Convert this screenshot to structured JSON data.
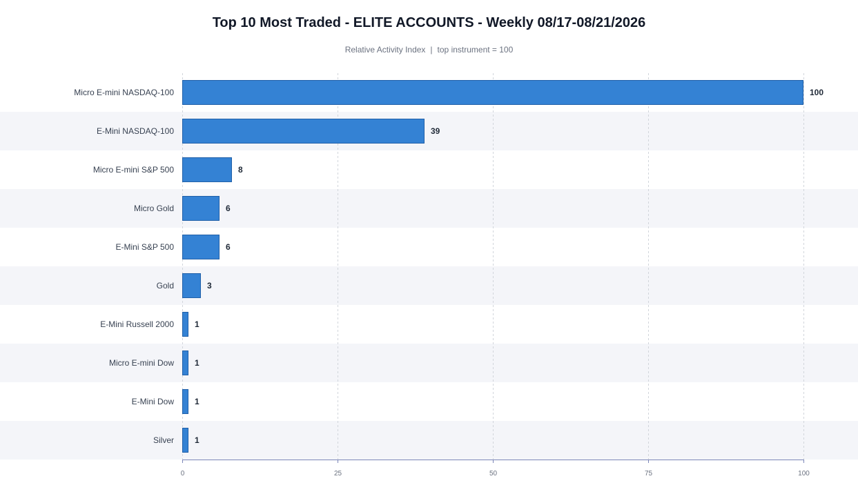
{
  "colors": {
    "bar": "#3482d4",
    "bar_stroke": "#1f5fa8",
    "band": "#f4f5f9",
    "grid": "#d1d5db",
    "axis": "#7b86b8"
  },
  "chart_data": {
    "type": "bar",
    "orientation": "horizontal",
    "title": "Top 10 Most Traded - ELITE ACCOUNTS - Weekly 08/17-08/21/2026",
    "subtitle": {
      "left": "Relative Activity Index",
      "separator": "|",
      "right": "top instrument = 100"
    },
    "categories": [
      "Micro E-mini NASDAQ-100",
      "E-Mini NASDAQ-100",
      "Micro E-mini S&P 500",
      "Micro Gold",
      "E-Mini S&P 500",
      "Gold",
      "E-Mini Russell 2000",
      "Micro E-mini Dow",
      "E-Mini Dow",
      "Silver"
    ],
    "values": [
      100,
      39,
      8,
      6,
      6,
      3,
      1,
      1,
      1,
      1
    ],
    "value_labels": [
      "100",
      "39",
      "8",
      "6",
      "6",
      "3",
      "1",
      "1",
      "1",
      "1"
    ],
    "xlim": [
      0,
      100
    ],
    "xticks": [
      0,
      25,
      50,
      75,
      100
    ],
    "xtick_labels": [
      "0",
      "25",
      "50",
      "75",
      "100"
    ],
    "xlabel": "",
    "ylabel": "",
    "grid": "vertical dashed",
    "legend": "none"
  }
}
